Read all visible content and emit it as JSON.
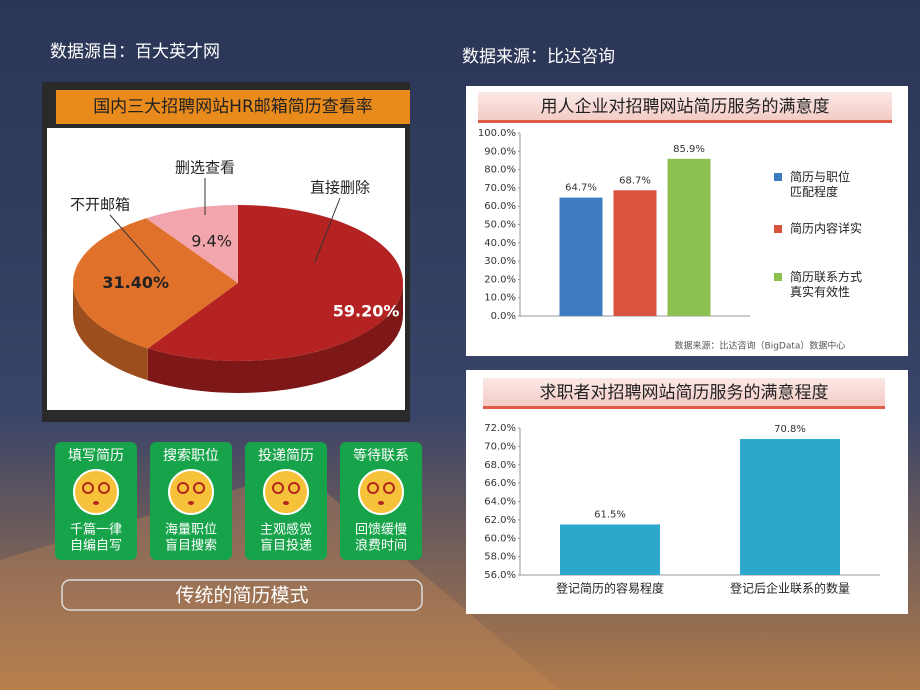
{
  "sources": [
    "数据源自：百大英才网",
    "数据来源：比达咨询"
  ],
  "chart_data": [
    {
      "type": "pie",
      "title": "国内三大招聘网站HR邮箱简历查看率",
      "categories": [
        "直接删除",
        "不开邮箱",
        "删选查看"
      ],
      "values": [
        59.2,
        31.4,
        9.4
      ],
      "value_labels": [
        "59.20%",
        "31.40%",
        "9.4%"
      ],
      "colors": [
        "#b52222",
        "#e0712a",
        "#f2a5ad"
      ]
    },
    {
      "type": "bar",
      "title": "用人企业对招聘网站简历服务的满意度",
      "categories": [
        null
      ],
      "series": [
        {
          "name": "简历与职位匹配程度",
          "color": "#3d7cc0",
          "values": [
            64.7
          ],
          "value_labels": [
            "64.7%"
          ]
        },
        {
          "name": "简历内容详实",
          "color": "#d9533f",
          "values": [
            68.7
          ],
          "value_labels": [
            "68.7%"
          ]
        },
        {
          "name": "简历联系方式真实有效性",
          "color": "#8cc152",
          "values": [
            85.9
          ],
          "value_labels": [
            "85.9%"
          ]
        }
      ],
      "ylim": [
        0,
        100
      ],
      "yticks": [
        {
          "value": 0,
          "label": "0.0%"
        },
        {
          "value": 10,
          "label": "10.0%"
        },
        {
          "value": 20,
          "label": "20.0%"
        },
        {
          "value": 30,
          "label": "30.0%"
        },
        {
          "value": 40,
          "label": "40.0%"
        },
        {
          "value": 50,
          "label": "50.0%"
        },
        {
          "value": 60,
          "label": "60.0%"
        },
        {
          "value": 70,
          "label": "70.0%"
        },
        {
          "value": 80,
          "label": "80.0%"
        },
        {
          "value": 90,
          "label": "90.0%"
        },
        {
          "value": 100,
          "label": "100.0%"
        }
      ],
      "legend": "right",
      "source_note": "数据来源：比达咨询（BigData）数据中心"
    },
    {
      "type": "bar",
      "title": "求职者对招聘网站简历服务的满意程度",
      "categories": [
        "登记简历的容易程度",
        "登记后企业联系的数量"
      ],
      "series": [
        {
          "name": null,
          "color": "#2ba8cc",
          "values": [
            61.5,
            70.8
          ],
          "value_labels": [
            "61.5%",
            "70.8%"
          ]
        }
      ],
      "ylim": [
        56,
        72
      ],
      "yticks": [
        {
          "value": 56,
          "label": "56.0%"
        },
        {
          "value": 58,
          "label": "58.0%"
        },
        {
          "value": 60,
          "label": "60.0%"
        },
        {
          "value": 62,
          "label": "62.0%"
        },
        {
          "value": 64,
          "label": "64.0%"
        },
        {
          "value": 66,
          "label": "66.0%"
        },
        {
          "value": 68,
          "label": "68.0%"
        },
        {
          "value": 70,
          "label": "70.0%"
        },
        {
          "value": 72,
          "label": "72.0%"
        }
      ]
    }
  ],
  "cards": [
    {
      "title": "填写简历",
      "lines": [
        "千篇一律",
        "自编自写"
      ]
    },
    {
      "title": "搜索职位",
      "lines": [
        "海量职位",
        "盲目搜索"
      ]
    },
    {
      "title": "投递简历",
      "lines": [
        "主观感觉",
        "盲目投递"
      ]
    },
    {
      "title": "等待联系",
      "lines": [
        "回馈缓慢",
        "浪费时间"
      ]
    }
  ],
  "footer": "传统的简历模式"
}
